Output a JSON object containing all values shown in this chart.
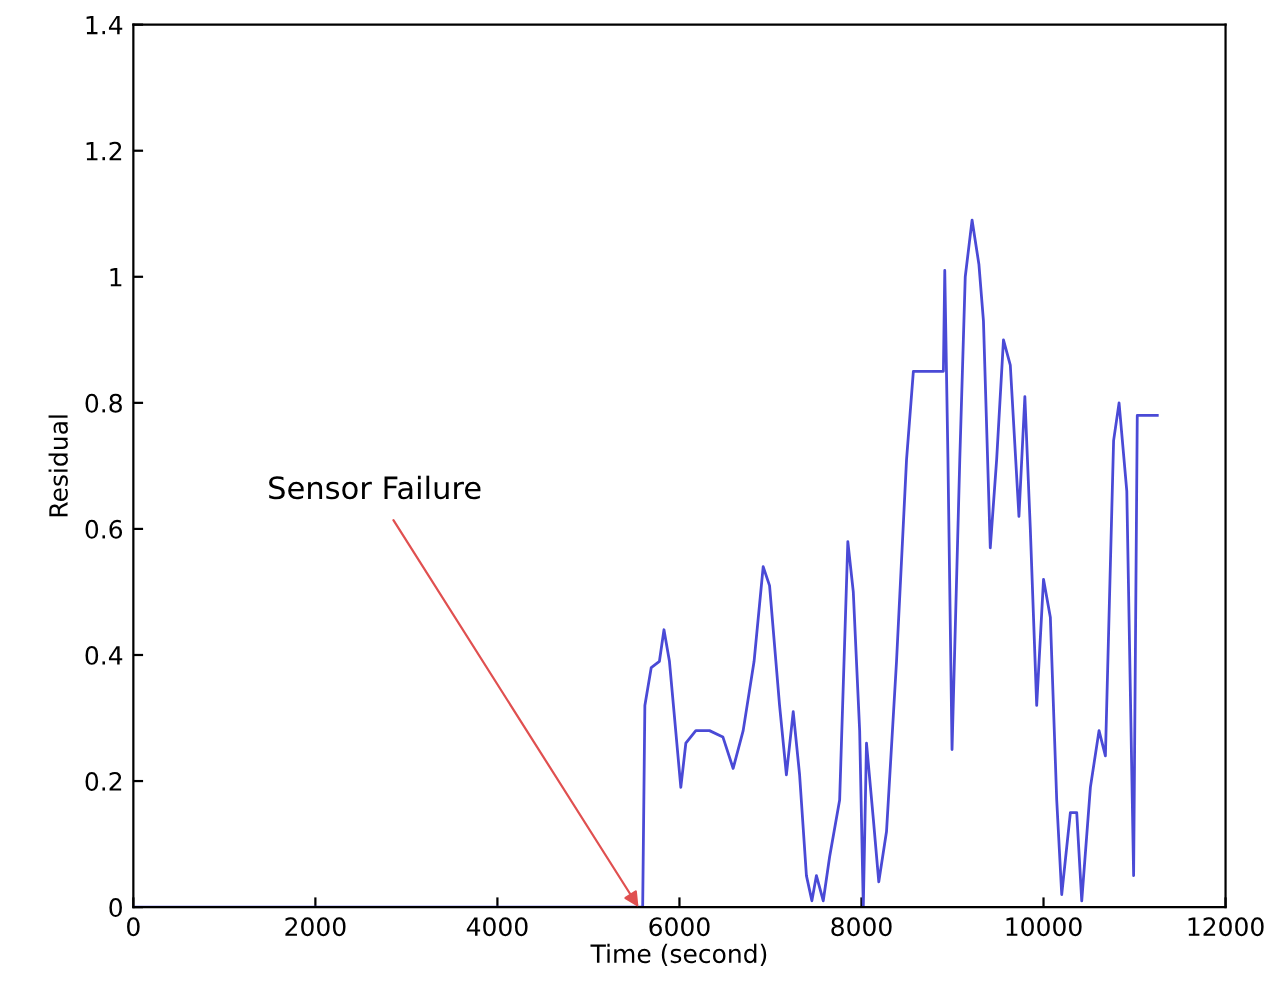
{
  "chart_data": {
    "type": "line",
    "xlabel": "Time (second)",
    "ylabel": "Residual",
    "xlim": [
      0,
      12000
    ],
    "xticks": [
      0,
      2000,
      4000,
      6000,
      8000,
      10000,
      12000
    ],
    "ylim": [
      0,
      1.4
    ],
    "yticks": [
      0,
      {
        "value": 0.2,
        "label": "0.2"
      },
      {
        "value": 0.4,
        "label": "0.4"
      },
      {
        "value": 0.6,
        "label": "0.6"
      },
      {
        "value": 0.8,
        "label": "0.8"
      },
      1,
      {
        "value": 1.2,
        "label": "1.2"
      },
      {
        "value": 1.4,
        "label": "1.4"
      }
    ],
    "grid": false,
    "marker": "none",
    "line_style": "solid",
    "series": [
      {
        "color": "#4a4ad6",
        "x": [
          0,
          5596,
          5620,
          5690,
          5780,
          5830,
          5890,
          5940,
          6015,
          6070,
          6180,
          6330,
          6477,
          6590,
          6700,
          6820,
          6920,
          6990,
          7100,
          7175,
          7250,
          7320,
          7395,
          7455,
          7505,
          7580,
          7650,
          7760,
          7850,
          7910,
          7980,
          8020,
          8055,
          8130,
          8190,
          8275,
          8385,
          8495,
          8570,
          8900,
          8915,
          8950,
          8995,
          9080,
          9140,
          9215,
          9290,
          9340,
          9415,
          9485,
          9560,
          9635,
          9730,
          9795,
          9855,
          9925,
          10000,
          10075,
          10145,
          10200,
          10295,
          10365,
          10420,
          10515,
          10610,
          10680,
          10770,
          10830,
          10915,
          10990,
          11030,
          11250
        ],
        "values": [
          0,
          0,
          0.32,
          0.38,
          0.39,
          0.44,
          0.39,
          0.31,
          0.19,
          0.26,
          0.28,
          0.28,
          0.27,
          0.22,
          0.28,
          0.39,
          0.54,
          0.51,
          0.32,
          0.21,
          0.31,
          0.21,
          0.05,
          0.01,
          0.05,
          0.01,
          0.08,
          0.17,
          0.58,
          0.5,
          0.28,
          0,
          0.26,
          0.14,
          0.04,
          0.12,
          0.39,
          0.71,
          0.85,
          0.85,
          1.01,
          0.71,
          0.25,
          0.71,
          1.0,
          1.09,
          1.02,
          0.93,
          0.57,
          0.71,
          0.9,
          0.86,
          0.62,
          0.81,
          0.6,
          0.32,
          0.52,
          0.46,
          0.17,
          0.02,
          0.15,
          0.15,
          0.01,
          0.19,
          0.28,
          0.24,
          0.74,
          0.8,
          0.66,
          0.05,
          0.78,
          0.78
        ]
      }
    ],
    "annotations": [
      {
        "text": "Sensor Failure",
        "x": 5550,
        "y": 0
      }
    ]
  }
}
